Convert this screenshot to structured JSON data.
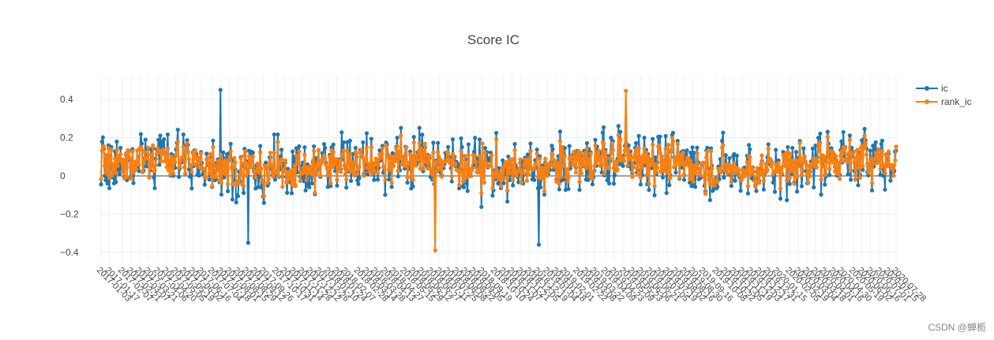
{
  "chart_data": {
    "type": "line",
    "title": "Score IC",
    "xlabel": "",
    "ylabel": "",
    "ylim": [
      -0.45,
      0.52
    ],
    "yticks": [
      -0.4,
      -0.2,
      0,
      0.2,
      0.4
    ],
    "ytick_labels": [
      "−0.4",
      "−0.2",
      "0",
      "0.2",
      "0.4"
    ],
    "grid": true,
    "legend_position": "top-right",
    "x_start": "2017-01-03",
    "x_end": "2020-07-28",
    "xtick_labels": [
      "2017-01-03",
      "2017-01-17",
      "2017-02-07",
      "2017-02-21",
      "2017-03-07",
      "2017-03-21",
      "2017-04-06",
      "2017-04-20",
      "2017-05-05",
      "2017-05-19",
      "2017-06-02",
      "2017-06-16",
      "2017-07-04",
      "2017-07-18",
      "2017-08-01",
      "2017-08-15",
      "2017-08-29",
      "2017-09-12",
      "2017-09-26",
      "2017-10-17",
      "2017-10-31",
      "2017-11-14",
      "2017-11-28",
      "2017-12-12",
      "2017-12-26",
      "2018-01-10",
      "2018-01-24",
      "2018-02-07",
      "2018-02-28",
      "2018-03-14",
      "2018-03-28",
      "2018-04-13",
      "2018-04-27",
      "2018-05-15",
      "2018-05-29",
      "2018-06-12",
      "2018-06-27",
      "2018-07-11",
      "2018-07-25",
      "2018-08-08",
      "2018-08-22",
      "2018-09-05",
      "2018-09-19",
      "2018-10-10",
      "2018-10-24",
      "2018-11-07",
      "2018-11-21",
      "2018-12-05",
      "2018-12-19",
      "2019-01-04",
      "2019-01-18",
      "2019-02-01",
      "2019-02-22",
      "2019-03-08",
      "2019-03-22",
      "2019-04-09",
      "2019-04-23",
      "2019-05-09",
      "2019-05-23",
      "2019-06-06",
      "2019-06-21",
      "2019-07-05",
      "2019-07-19",
      "2019-08-02",
      "2019-08-16",
      "2019-08-30",
      "2019-09-16",
      "2019-10-08",
      "2019-10-22",
      "2019-11-05",
      "2019-11-19",
      "2019-12-03",
      "2019-12-17",
      "2019-12-31",
      "2020-01-15",
      "2020-02-05",
      "2020-02-19",
      "2020-03-04",
      "2020-03-18",
      "2020-04-01",
      "2020-04-16",
      "2020-04-30",
      "2020-05-19",
      "2020-06-02",
      "2020-06-16",
      "2020-07-01",
      "2020-07-15",
      "2020-07-28"
    ],
    "point_count": 860,
    "series": [
      {
        "name": "ic",
        "color": "#1f77b4"
      },
      {
        "name": "rank_ic",
        "color": "#ff7f0e"
      }
    ],
    "notable_points": {
      "ic_max": 0.45,
      "ic_min": -0.36,
      "rank_ic_max": 0.445,
      "rank_ic_min": -0.39
    }
  },
  "watermark": "CSDN @蝉栀"
}
